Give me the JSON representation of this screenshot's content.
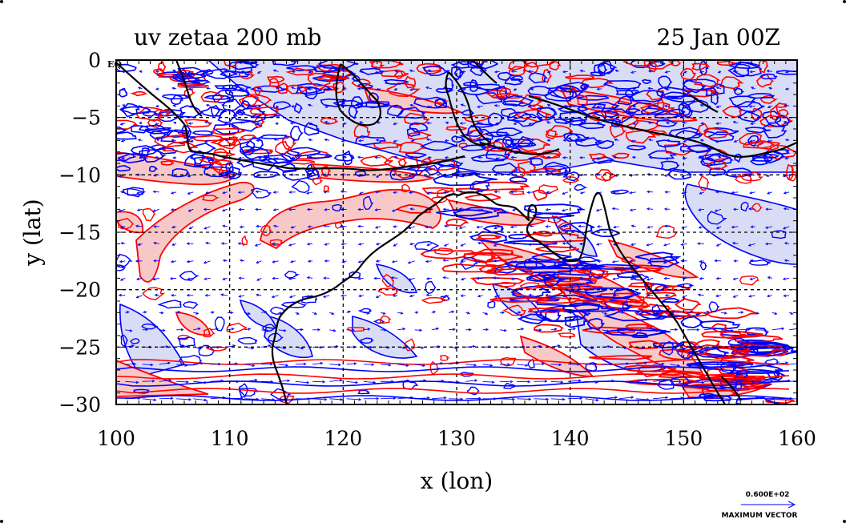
{
  "header": {
    "left_title": "uv zetaa 200 mb",
    "right_title": "25 Jan 00Z"
  },
  "axes": {
    "xlabel": "x (lon)",
    "ylabel": "y (lat)",
    "x_ticks": [
      "100",
      "110",
      "120",
      "130",
      "140",
      "150",
      "160"
    ],
    "y_ticks": [
      "0",
      "−5",
      "−10",
      "−15",
      "−20",
      "−25",
      "−30"
    ],
    "xlim": [
      100,
      160
    ],
    "ylim": [
      -30,
      0
    ],
    "grid": true
  },
  "map": {
    "equator_label": "EQ",
    "colors": {
      "positive_contour": "#ff0000",
      "positive_fill": "#f7c8c8",
      "negative_contour": "#0000ff",
      "negative_fill": "#d8dcf5",
      "vectors": "#0000ff",
      "coastline": "#000000",
      "grid": "#000000"
    }
  },
  "legend": {
    "magnitude_label": "0.600E+02",
    "caption": "MAXIMUM VECTOR"
  }
}
